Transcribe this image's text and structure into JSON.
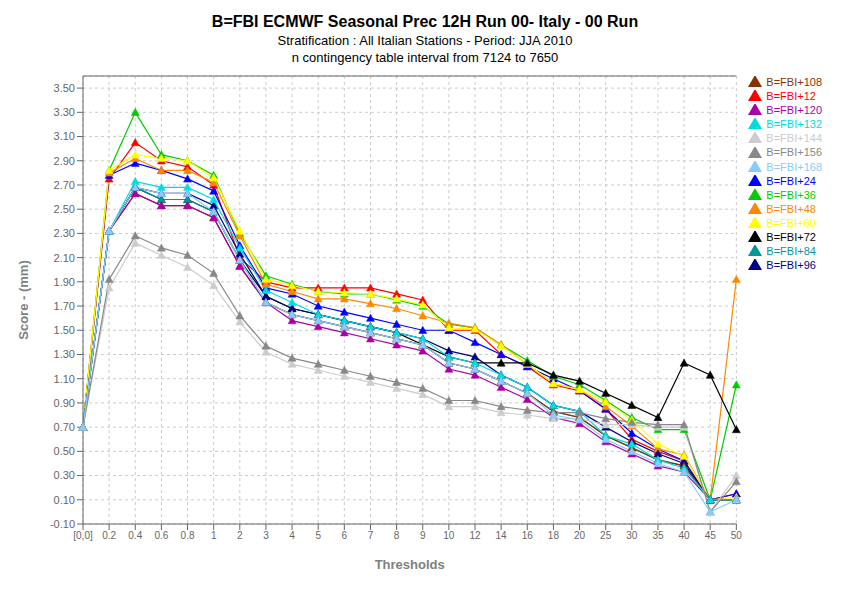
{
  "chart_data": {
    "type": "line",
    "title": "B=FBI  ECMWF Seasonal Prec 12H Run 00- Italy - 00 Run",
    "subtitle": [
      "Stratification : All Italian Stations - Period: JJA 2010",
      "n contingency table interval from 7124 to 7650"
    ],
    "x_label": "Thresholds",
    "y_label": "Score - (mm)",
    "categories": [
      "[0,0]",
      "0.2",
      "0.4",
      "0.6",
      "0.8",
      "1",
      "2",
      "3",
      "4",
      "5",
      "6",
      "7",
      "8",
      "9",
      "10",
      "12",
      "14",
      "16",
      "18",
      "20",
      "25",
      "30",
      "35",
      "40",
      "45",
      "50"
    ],
    "ylim": [
      -0.1,
      3.6
    ],
    "yticks": [
      {
        "value": -0.1,
        "label": "-0.10"
      },
      {
        "value": 0.1,
        "label": "0.10"
      },
      {
        "value": 0.3,
        "label": "0.30"
      },
      {
        "value": 0.5,
        "label": "0.50"
      },
      {
        "value": 0.7,
        "label": "0.70"
      },
      {
        "value": 0.9,
        "label": "0.90"
      },
      {
        "value": 1.1,
        "label": "1.10"
      },
      {
        "value": 1.3,
        "label": "1.30"
      },
      {
        "value": 1.5,
        "label": "1.50"
      },
      {
        "value": 1.7,
        "label": "1.70"
      },
      {
        "value": 1.9,
        "label": "1.90"
      },
      {
        "value": 2.1,
        "label": "2.10"
      },
      {
        "value": 2.3,
        "label": "2.30"
      },
      {
        "value": 2.5,
        "label": "2.50"
      },
      {
        "value": 2.7,
        "label": "2.70"
      },
      {
        "value": 2.9,
        "label": "2.90"
      },
      {
        "value": 3.1,
        "label": "3.10"
      },
      {
        "value": 3.3,
        "label": "3.30"
      },
      {
        "value": 3.5,
        "label": "3.50"
      }
    ],
    "grid": true,
    "legend": "right",
    "marker": "triangle",
    "series": [
      {
        "name": "B=FBI+12",
        "color": "#FF0000",
        "values": [
          0.7,
          2.75,
          3.05,
          2.9,
          2.85,
          2.7,
          2.1,
          1.9,
          1.85,
          1.85,
          1.85,
          1.85,
          1.8,
          1.75,
          1.5,
          1.5,
          1.3,
          1.2,
          1.05,
          1.0,
          0.85,
          0.6,
          0.5,
          0.42,
          0.1,
          0.15
        ]
      },
      {
        "name": "B=FBI+24",
        "color": "#0000FF",
        "values": [
          0.7,
          2.78,
          2.88,
          2.82,
          2.75,
          2.65,
          2.2,
          1.85,
          1.8,
          1.7,
          1.65,
          1.6,
          1.55,
          1.5,
          1.5,
          1.4,
          1.3,
          1.2,
          1.1,
          1.0,
          0.85,
          0.65,
          0.52,
          0.42,
          0.1,
          0.15
        ]
      },
      {
        "name": "B=FBI+36",
        "color": "#00CC00",
        "values": [
          0.7,
          2.82,
          3.3,
          2.95,
          2.9,
          2.78,
          2.3,
          1.95,
          1.88,
          1.82,
          1.8,
          1.8,
          1.75,
          1.7,
          1.55,
          1.52,
          1.38,
          1.25,
          1.12,
          1.05,
          0.92,
          0.78,
          0.68,
          0.68,
          0.1,
          1.05
        ]
      },
      {
        "name": "B=FBI+48",
        "color": "#FF8800",
        "values": [
          0.7,
          2.8,
          2.92,
          2.82,
          2.82,
          2.72,
          2.28,
          1.88,
          1.82,
          1.76,
          1.76,
          1.72,
          1.68,
          1.62,
          1.56,
          1.52,
          1.38,
          1.22,
          1.06,
          1.01,
          0.87,
          0.71,
          0.52,
          0.47,
          0.1,
          1.92
        ]
      },
      {
        "name": "B=FBI+60",
        "color": "#FFFF00",
        "values": [
          0.7,
          2.82,
          2.95,
          2.92,
          2.9,
          2.76,
          2.32,
          1.92,
          1.87,
          1.82,
          1.81,
          1.8,
          1.76,
          1.71,
          1.52,
          1.51,
          1.37,
          1.22,
          1.06,
          1.01,
          0.91,
          0.76,
          0.56,
          0.46,
          0.1,
          0.12
        ]
      },
      {
        "name": "B=FBI+72",
        "color": "#000000",
        "values": [
          0.7,
          2.32,
          2.68,
          2.58,
          2.58,
          2.48,
          2.08,
          1.78,
          1.68,
          1.63,
          1.58,
          1.53,
          1.48,
          1.38,
          1.28,
          1.23,
          1.23,
          1.23,
          1.13,
          1.08,
          0.98,
          0.88,
          0.78,
          1.23,
          1.13,
          0.68
        ]
      },
      {
        "name": "B=FBI+84",
        "color": "#009999",
        "values": [
          0.7,
          2.32,
          2.68,
          2.58,
          2.58,
          2.48,
          2.08,
          1.73,
          1.63,
          1.58,
          1.53,
          1.48,
          1.43,
          1.38,
          1.23,
          1.18,
          1.08,
          0.98,
          0.83,
          0.78,
          0.63,
          0.53,
          0.43,
          0.38,
          0.1,
          0.1
        ]
      },
      {
        "name": "B=FBI+96",
        "color": "#000088",
        "values": [
          0.7,
          2.32,
          2.68,
          2.63,
          2.63,
          2.53,
          2.13,
          1.78,
          1.68,
          1.63,
          1.58,
          1.53,
          1.48,
          1.43,
          1.33,
          1.28,
          1.13,
          1.03,
          0.88,
          0.83,
          0.7,
          0.58,
          0.48,
          0.4,
          0.1,
          0.1
        ]
      },
      {
        "name": "B=FBI+108",
        "color": "#883300",
        "values": [
          0.7,
          2.32,
          2.63,
          2.53,
          2.53,
          2.43,
          2.03,
          1.73,
          1.63,
          1.58,
          1.53,
          1.48,
          1.43,
          1.38,
          1.23,
          1.18,
          1.08,
          0.98,
          0.83,
          0.78,
          0.63,
          0.53,
          0.43,
          0.38,
          0.1,
          0.1
        ]
      },
      {
        "name": "B=FBI+120",
        "color": "#AA00AA",
        "values": [
          0.7,
          2.32,
          2.63,
          2.53,
          2.53,
          2.43,
          2.03,
          1.73,
          1.58,
          1.53,
          1.48,
          1.43,
          1.38,
          1.33,
          1.18,
          1.13,
          1.03,
          0.93,
          0.78,
          0.73,
          0.58,
          0.48,
          0.38,
          0.33,
          0.1,
          0.1
        ]
      },
      {
        "name": "B=FBI+132",
        "color": "#00DDDD",
        "values": [
          0.7,
          2.32,
          2.73,
          2.68,
          2.68,
          2.58,
          2.18,
          1.83,
          1.73,
          1.63,
          1.58,
          1.53,
          1.48,
          1.43,
          1.28,
          1.23,
          1.13,
          1.03,
          0.88,
          0.83,
          0.63,
          0.56,
          0.43,
          0.36,
          0.1,
          0.1
        ]
      },
      {
        "name": "B=FBI+144",
        "color": "#CCCCCC",
        "values": [
          0.7,
          1.85,
          2.22,
          2.12,
          2.02,
          1.87,
          1.57,
          1.32,
          1.22,
          1.17,
          1.12,
          1.07,
          1.02,
          0.97,
          0.87,
          0.87,
          0.82,
          0.8,
          0.77,
          0.77,
          0.72,
          0.72,
          0.7,
          0.7,
          0.0,
          0.3
        ]
      },
      {
        "name": "B=FBI+156",
        "color": "#888888",
        "values": [
          0.7,
          1.92,
          2.28,
          2.18,
          2.12,
          1.97,
          1.62,
          1.37,
          1.27,
          1.22,
          1.17,
          1.12,
          1.07,
          1.02,
          0.92,
          0.92,
          0.87,
          0.84,
          0.82,
          0.82,
          0.77,
          0.74,
          0.72,
          0.72,
          0.0,
          0.25
        ]
      },
      {
        "name": "B=FBI+168",
        "color": "#88CCFF",
        "values": [
          0.7,
          2.32,
          2.68,
          2.63,
          2.63,
          2.48,
          2.08,
          1.73,
          1.63,
          1.58,
          1.53,
          1.48,
          1.43,
          1.38,
          1.23,
          1.18,
          1.08,
          0.98,
          0.8,
          0.76,
          0.6,
          0.5,
          0.4,
          0.33,
          0.0,
          0.1
        ]
      }
    ]
  }
}
